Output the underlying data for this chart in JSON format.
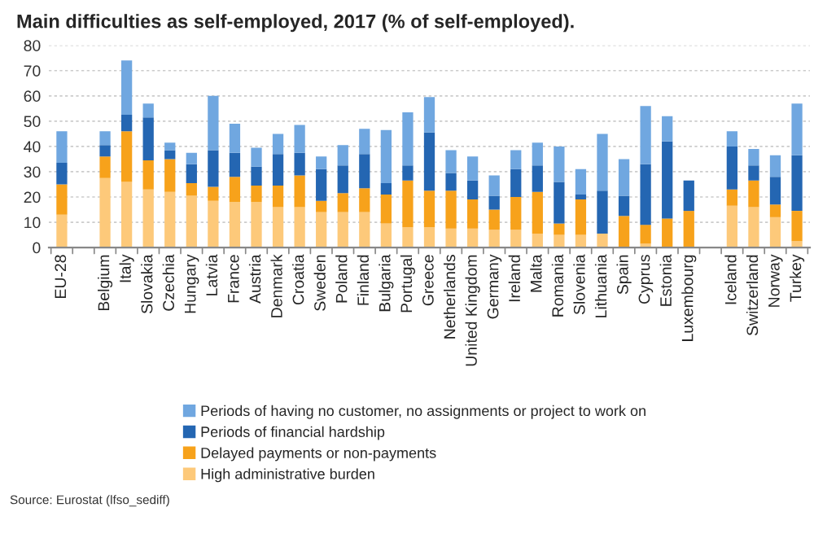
{
  "chart_data": {
    "type": "bar",
    "stacked": true,
    "title": "Main difficulties as self-employed, 2017 (% of self-employed).",
    "categories": [
      "EU-28",
      null,
      "Belgium",
      "Italy",
      "Slovakia",
      "Czechia",
      "Hungary",
      "Latvia",
      "France",
      "Austria",
      "Denmark",
      "Croatia",
      "Sweden",
      "Poland",
      "Finland",
      "Bulgaria",
      "Portugal",
      "Greece",
      "Netherlands",
      "United Kingdom",
      "Germany",
      "Ireland",
      "Malta",
      "Romania",
      "Slovenia",
      "Lithuania",
      "Spain",
      "Cyprus",
      "Estonia",
      "Luxembourg",
      null,
      "Iceland",
      "Switzerland",
      "Norway",
      "Turkey"
    ],
    "series": [
      {
        "name": "High administrative burden",
        "color": "#fdc97a",
        "values": [
          13,
          null,
          27.5,
          26,
          23,
          22,
          20.5,
          18.5,
          18,
          18,
          16,
          16,
          14,
          14,
          14,
          9.5,
          8,
          8,
          7.5,
          7.5,
          7,
          7,
          5.5,
          5,
          5,
          5.5,
          null,
          1.5,
          null,
          null,
          null,
          16.5,
          16,
          12,
          2.5
        ]
      },
      {
        "name": "Delayed payments or non-payments",
        "color": "#f7a21b",
        "values": [
          12,
          null,
          8.5,
          20,
          11.5,
          13,
          5,
          5.5,
          10,
          6.5,
          8.5,
          12.5,
          4.5,
          7.5,
          9.5,
          11.5,
          18.5,
          14.5,
          15,
          11.5,
          8,
          13,
          16.5,
          4.5,
          14,
          null,
          12.5,
          7.5,
          11.5,
          14.5,
          null,
          6.5,
          10.5,
          5,
          12
        ]
      },
      {
        "name": "Periods of financial hardship",
        "color": "#2466b2",
        "values": [
          8.5,
          null,
          4.5,
          6.5,
          17,
          3.5,
          7.5,
          14.5,
          9.5,
          7.5,
          12.5,
          9,
          12.5,
          11,
          13.5,
          4.5,
          6,
          23,
          7,
          7.5,
          5.5,
          11,
          10.5,
          16.5,
          2,
          17,
          8,
          24,
          30.5,
          12,
          null,
          17,
          6,
          11,
          22
        ]
      },
      {
        "name": "Periods of having no customer, no assignments or project to work on",
        "color": "#70a7e0",
        "values": [
          12.5,
          null,
          5.5,
          21.5,
          5.5,
          3,
          4.5,
          21.5,
          11.5,
          7.5,
          8,
          11,
          5,
          8,
          10,
          21,
          21,
          14,
          9,
          9.5,
          8,
          7.5,
          9,
          14,
          10,
          22.5,
          14.5,
          23,
          10,
          null,
          null,
          6,
          6.5,
          8.5,
          20.5
        ]
      }
    ],
    "ylim": [
      0,
      80
    ],
    "yticks": [
      0,
      10,
      20,
      30,
      40,
      50,
      60,
      70,
      80
    ],
    "grid": "y",
    "legend": "bottom",
    "annotations": [
      "Source: Eurostat (lfso_sediff)"
    ]
  }
}
